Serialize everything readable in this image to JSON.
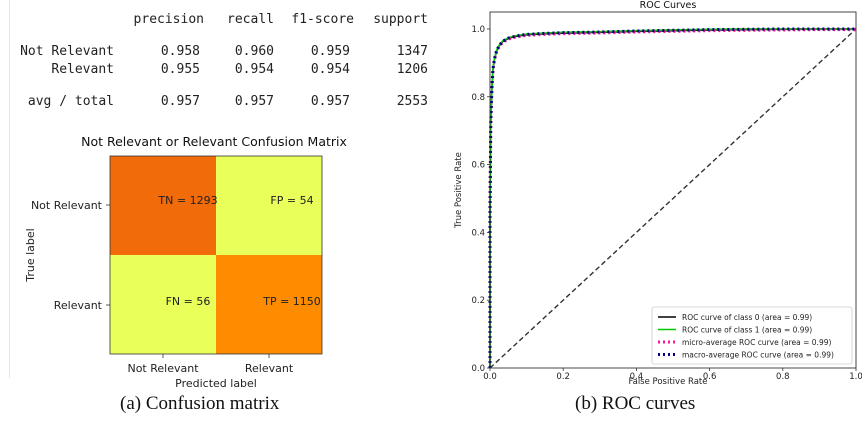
{
  "report": {
    "headers": [
      "precision",
      "recall",
      "f1-score",
      "support"
    ],
    "rows": [
      {
        "label": "Not Relevant",
        "values": [
          "0.958",
          "0.960",
          "0.959",
          "1347"
        ]
      },
      {
        "label": "Relevant",
        "values": [
          "0.955",
          "0.954",
          "0.954",
          "1206"
        ]
      },
      {
        "label": "avg / total",
        "values": [
          "0.957",
          "0.957",
          "0.957",
          "2553"
        ]
      }
    ]
  },
  "chart_data": [
    {
      "type": "heatmap",
      "title": "Not Relevant or Relevant Confusion Matrix",
      "xlabel": "Predicted label",
      "ylabel": "True label",
      "x_categories": [
        "Not Relevant",
        "Relevant"
      ],
      "y_categories": [
        "Not Relevant",
        "Relevant"
      ],
      "cells": [
        [
          {
            "label": "TN = 1293",
            "value": 1293
          },
          {
            "label": "FP = 54",
            "value": 54
          }
        ],
        [
          {
            "label": "FN = 56",
            "value": 56
          },
          {
            "label": "TP = 1150",
            "value": 1150
          }
        ]
      ],
      "colormap": {
        "high": "#ff8c00",
        "low": "#e9ff5a",
        "highest": "#f26b0a"
      }
    },
    {
      "type": "line",
      "title": "ROC Curves",
      "xlabel": "False Positive Rate",
      "ylabel": "True Positive Rate",
      "xlim": [
        0.0,
        1.0
      ],
      "ylim": [
        0.0,
        1.05
      ],
      "xticks": [
        "0.0",
        "0.2",
        "0.4",
        "0.6",
        "0.8",
        "1.0"
      ],
      "yticks": [
        "0.0",
        "0.2",
        "0.4",
        "0.6",
        "0.8",
        "1.0"
      ],
      "legend_position": "bottom-right",
      "roc_x": [
        0,
        0.0,
        0.002,
        0.005,
        0.008,
        0.012,
        0.018,
        0.025,
        0.035,
        0.05,
        0.07,
        0.1,
        0.15,
        0.2,
        0.3,
        0.4,
        0.5,
        0.6,
        0.7,
        0.8,
        0.9,
        1.0
      ],
      "roc_y": [
        0,
        0.45,
        0.72,
        0.82,
        0.88,
        0.91,
        0.935,
        0.95,
        0.963,
        0.972,
        0.978,
        0.983,
        0.986,
        0.988,
        0.99,
        0.993,
        0.995,
        0.997,
        0.998,
        0.999,
        1.0,
        1.0
      ],
      "series": [
        {
          "name": "ROC curve of class 0 (area = 0.99)",
          "color": "#000000",
          "style": "solid",
          "dy": 0.0
        },
        {
          "name": "ROC curve of class 1 (area = 0.99)",
          "color": "#00cc00",
          "style": "solid",
          "dy": 0.002
        },
        {
          "name": "micro-average ROC curve (area = 0.99)",
          "color": "#ff1493",
          "style": "dotted",
          "dy": -0.002
        },
        {
          "name": "macro-average ROC curve (area = 0.99)",
          "color": "#000080",
          "style": "dotted",
          "dy": 0.001
        }
      ],
      "diagonal": {
        "x": [
          0,
          1
        ],
        "y": [
          0,
          1
        ],
        "color": "#333333",
        "style": "dashed"
      }
    }
  ],
  "captions": {
    "a": "(a) Confusion matrix",
    "b": "(b) ROC curves"
  }
}
